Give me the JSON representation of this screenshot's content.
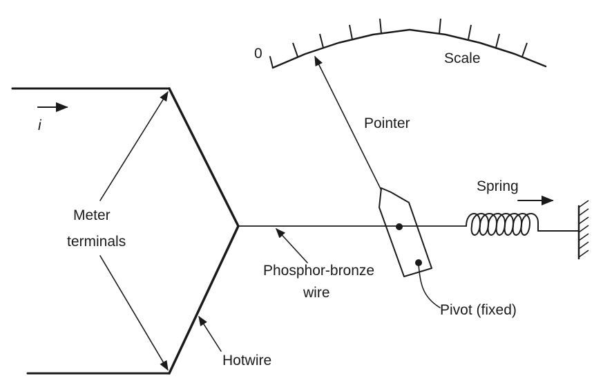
{
  "diagram": {
    "labels": {
      "current": "i",
      "zero": "0",
      "scale": "Scale",
      "pointer": "Pointer",
      "spring": "Spring",
      "meter_terminals_line1": "Meter",
      "meter_terminals_line2": "terminals",
      "phosphor_line1": "Phosphor-bronze",
      "phosphor_line2": "wire",
      "pivot": "Pivot (fixed)",
      "hotwire": "Hotwire"
    }
  }
}
